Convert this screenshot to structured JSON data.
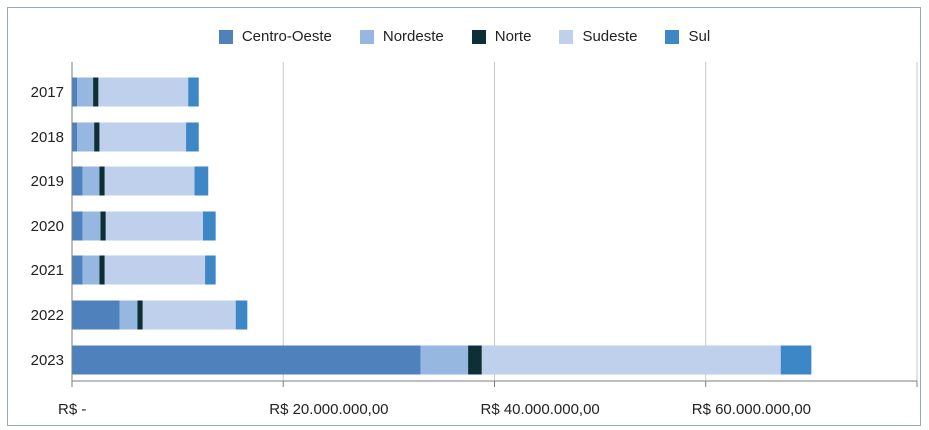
{
  "chart_data": {
    "type": "bar",
    "orientation": "horizontal",
    "stacked": true,
    "title": "",
    "xlabel": "",
    "ylabel": "",
    "categories": [
      "2017",
      "2018",
      "2019",
      "2020",
      "2021",
      "2022",
      "2023"
    ],
    "series": [
      {
        "name": "Centro-Oeste",
        "color": "#4f81bd",
        "values": [
          500000,
          500000,
          1000000,
          1000000,
          1000000,
          4500000,
          33000000
        ]
      },
      {
        "name": "Nordeste",
        "color": "#95b7e0",
        "values": [
          1500000,
          1600000,
          1600000,
          1700000,
          1600000,
          1700000,
          4500000
        ]
      },
      {
        "name": "Norte",
        "color": "#0d2f36",
        "values": [
          500000,
          500000,
          500000,
          500000,
          500000,
          500000,
          1300000
        ]
      },
      {
        "name": "Sudeste",
        "color": "#bed0eb",
        "values": [
          8500000,
          8200000,
          8500000,
          9200000,
          9500000,
          8800000,
          28300000
        ]
      },
      {
        "name": "Sul",
        "color": "#3d87c6",
        "values": [
          1000000,
          1200000,
          1300000,
          1200000,
          1000000,
          1100000,
          2900000
        ]
      }
    ],
    "xlim": [
      0,
      80000000
    ],
    "xticks": [
      0,
      20000000,
      40000000,
      60000000,
      80000000
    ],
    "xtick_labels": [
      "R$ -",
      "R$ 20.000.000,00",
      "R$ 40.000.000,00",
      "R$ 60.000.000,00",
      ""
    ],
    "grid": true,
    "legend_position": "top"
  }
}
